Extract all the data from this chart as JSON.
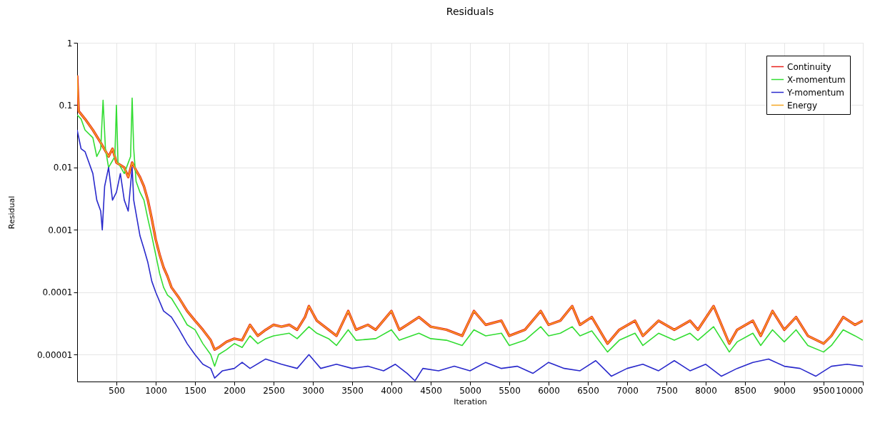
{
  "chart_data": {
    "type": "line",
    "title": "Residuals",
    "xlabel": "Iteration",
    "ylabel": "Residual",
    "log": "y",
    "grid": true,
    "legend": "top right",
    "line_style": "solid",
    "marker": "none",
    "xlim": [
      0,
      10000
    ],
    "xticks": [
      500,
      1000,
      1500,
      2000,
      2500,
      3000,
      3500,
      4000,
      4500,
      5000,
      5500,
      6000,
      6500,
      7000,
      7500,
      8000,
      8500,
      9000,
      9500,
      10000
    ],
    "ylim": [
      3.7e-06,
      1
    ],
    "yticks": [
      1,
      0.1,
      0.01,
      0.001,
      0.0001,
      {
        "value": 1e-05,
        "label": "0.00001"
      }
    ],
    "series": [
      {
        "name": "Continuity",
        "color": "#e8211b",
        "x": [
          0,
          20,
          100,
          200,
          300,
          400,
          450,
          500,
          600,
          650,
          700,
          750,
          800,
          850,
          900,
          950,
          1000,
          1050,
          1100,
          1150,
          1200,
          1300,
          1400,
          1500,
          1600,
          1700,
          1750,
          1800,
          1900,
          2000,
          2100,
          2200,
          2300,
          2400,
          2500,
          2600,
          2700,
          2800,
          2900,
          2950,
          3050,
          3200,
          3300,
          3450,
          3550,
          3700,
          3800,
          4000,
          4100,
          4200,
          4350,
          4500,
          4700,
          4900,
          5050,
          5200,
          5400,
          5500,
          5700,
          5900,
          6000,
          6150,
          6300,
          6400,
          6550,
          6750,
          6900,
          7100,
          7200,
          7400,
          7600,
          7800,
          7900,
          8100,
          8300,
          8400,
          8600,
          8700,
          8850,
          9000,
          9150,
          9300,
          9500,
          9600,
          9750,
          9900,
          10000
        ],
        "values": [
          0.3,
          0.08,
          0.06,
          0.04,
          0.025,
          0.015,
          0.02,
          0.012,
          0.01,
          0.007,
          0.012,
          0.009,
          0.007,
          0.005,
          0.003,
          0.0015,
          0.0007,
          0.0004,
          0.00025,
          0.00018,
          0.00012,
          8e-05,
          5e-05,
          3.5e-05,
          2.5e-05,
          1.7e-05,
          1.2e-05,
          1.3e-05,
          1.6e-05,
          1.8e-05,
          1.7e-05,
          3e-05,
          2e-05,
          2.5e-05,
          3e-05,
          2.8e-05,
          3e-05,
          2.5e-05,
          4e-05,
          6e-05,
          3.5e-05,
          2.5e-05,
          2e-05,
          5e-05,
          2.5e-05,
          3e-05,
          2.5e-05,
          5e-05,
          2.5e-05,
          3e-05,
          4e-05,
          2.8e-05,
          2.5e-05,
          2e-05,
          5e-05,
          3e-05,
          3.5e-05,
          2e-05,
          2.5e-05,
          5e-05,
          3e-05,
          3.5e-05,
          6e-05,
          3e-05,
          4e-05,
          1.5e-05,
          2.5e-05,
          3.5e-05,
          2e-05,
          3.5e-05,
          2.5e-05,
          3.5e-05,
          2.5e-05,
          6e-05,
          1.5e-05,
          2.5e-05,
          3.5e-05,
          2e-05,
          5e-05,
          2.5e-05,
          4e-05,
          2e-05,
          1.5e-05,
          2e-05,
          4e-05,
          3e-05,
          3.5e-05
        ]
      },
      {
        "name": "X-momentum",
        "color": "#33dd33",
        "x": [
          0,
          50,
          100,
          200,
          250,
          300,
          330,
          360,
          400,
          480,
          500,
          520,
          600,
          680,
          700,
          720,
          750,
          800,
          850,
          900,
          950,
          1000,
          1050,
          1100,
          1150,
          1200,
          1300,
          1400,
          1500,
          1600,
          1700,
          1750,
          1800,
          1900,
          2000,
          2100,
          2200,
          2300,
          2400,
          2500,
          2700,
          2800,
          2950,
          3050,
          3200,
          3300,
          3450,
          3550,
          3800,
          4000,
          4100,
          4350,
          4500,
          4700,
          4900,
          5050,
          5200,
          5400,
          5500,
          5700,
          5900,
          6000,
          6150,
          6300,
          6400,
          6550,
          6750,
          6900,
          7100,
          7200,
          7400,
          7600,
          7800,
          7900,
          8100,
          8300,
          8400,
          8600,
          8700,
          8850,
          9000,
          9150,
          9300,
          9500,
          9600,
          9750,
          9900,
          10000
        ],
        "values": [
          0.07,
          0.06,
          0.04,
          0.03,
          0.015,
          0.02,
          0.12,
          0.02,
          0.01,
          0.015,
          0.1,
          0.012,
          0.008,
          0.015,
          0.13,
          0.02,
          0.006,
          0.004,
          0.003,
          0.0015,
          0.0008,
          0.0004,
          0.0002,
          0.00012,
          9e-05,
          8e-05,
          5e-05,
          3e-05,
          2.5e-05,
          1.5e-05,
          1e-05,
          6.5e-06,
          1e-05,
          1.2e-05,
          1.5e-05,
          1.3e-05,
          2e-05,
          1.5e-05,
          1.8e-05,
          2e-05,
          2.2e-05,
          1.8e-05,
          2.8e-05,
          2.2e-05,
          1.8e-05,
          1.4e-05,
          2.5e-05,
          1.7e-05,
          1.8e-05,
          2.5e-05,
          1.7e-05,
          2.2e-05,
          1.8e-05,
          1.7e-05,
          1.4e-05,
          2.5e-05,
          2e-05,
          2.2e-05,
          1.4e-05,
          1.7e-05,
          2.8e-05,
          2e-05,
          2.2e-05,
          2.8e-05,
          2e-05,
          2.4e-05,
          1.1e-05,
          1.7e-05,
          2.2e-05,
          1.4e-05,
          2.2e-05,
          1.7e-05,
          2.2e-05,
          1.7e-05,
          2.8e-05,
          1.1e-05,
          1.6e-05,
          2.2e-05,
          1.4e-05,
          2.5e-05,
          1.6e-05,
          2.5e-05,
          1.4e-05,
          1.1e-05,
          1.4e-05,
          2.5e-05,
          2e-05,
          1.7e-05
        ]
      },
      {
        "name": "Y-momentum",
        "color": "#2a2acc",
        "x": [
          0,
          50,
          100,
          200,
          250,
          300,
          320,
          350,
          400,
          450,
          500,
          550,
          600,
          650,
          700,
          720,
          800,
          850,
          900,
          950,
          1000,
          1100,
          1200,
          1300,
          1400,
          1500,
          1600,
          1700,
          1750,
          1850,
          2000,
          2100,
          2200,
          2400,
          2600,
          2800,
          2950,
          3100,
          3300,
          3500,
          3700,
          3900,
          4050,
          4200,
          4300,
          4400,
          4600,
          4800,
          5000,
          5200,
          5400,
          5600,
          5800,
          6000,
          6200,
          6400,
          6600,
          6800,
          7000,
          7200,
          7400,
          7600,
          7800,
          8000,
          8200,
          8400,
          8600,
          8800,
          9000,
          9200,
          9400,
          9600,
          9800,
          10000
        ],
        "values": [
          0.04,
          0.02,
          0.018,
          0.008,
          0.003,
          0.002,
          0.001,
          0.005,
          0.01,
          0.003,
          0.004,
          0.008,
          0.003,
          0.002,
          0.01,
          0.003,
          0.0008,
          0.0005,
          0.0003,
          0.00015,
          0.0001,
          5e-05,
          4e-05,
          2.5e-05,
          1.5e-05,
          1e-05,
          7e-06,
          6e-06,
          4.2e-06,
          5.5e-06,
          6e-06,
          7.5e-06,
          6e-06,
          8.5e-06,
          7e-06,
          6e-06,
          1e-05,
          6e-06,
          7e-06,
          6e-06,
          6.5e-06,
          5.5e-06,
          7e-06,
          5e-06,
          3.8e-06,
          6e-06,
          5.5e-06,
          6.5e-06,
          5.5e-06,
          7.5e-06,
          6e-06,
          6.5e-06,
          5e-06,
          7.5e-06,
          6e-06,
          5.5e-06,
          8e-06,
          4.5e-06,
          6e-06,
          7e-06,
          5.5e-06,
          8e-06,
          5.5e-06,
          7e-06,
          4.5e-06,
          6e-06,
          7.5e-06,
          8.5e-06,
          6.5e-06,
          6e-06,
          4.5e-06,
          6.5e-06,
          7e-06,
          6.5e-06
        ]
      },
      {
        "name": "Energy",
        "color": "#f5a623",
        "x": [
          0,
          20,
          100,
          200,
          300,
          400,
          450,
          500,
          600,
          650,
          700,
          750,
          800,
          850,
          900,
          950,
          1000,
          1050,
          1100,
          1150,
          1200,
          1300,
          1400,
          1500,
          1600,
          1700,
          1750,
          1800,
          1900,
          2000,
          2100,
          2200,
          2300,
          2400,
          2500,
          2600,
          2700,
          2800,
          2900,
          2950,
          3050,
          3200,
          3300,
          3450,
          3550,
          3700,
          3800,
          4000,
          4100,
          4200,
          4350,
          4500,
          4700,
          4900,
          5050,
          5200,
          5400,
          5500,
          5700,
          5900,
          6000,
          6150,
          6300,
          6400,
          6550,
          6750,
          6900,
          7100,
          7200,
          7400,
          7600,
          7800,
          7900,
          8100,
          8300,
          8400,
          8600,
          8700,
          8850,
          9000,
          9150,
          9300,
          9500,
          9600,
          9750,
          9900,
          10000
        ],
        "values": [
          0.3,
          0.08,
          0.06,
          0.04,
          0.025,
          0.015,
          0.02,
          0.012,
          0.01,
          0.007,
          0.012,
          0.009,
          0.007,
          0.005,
          0.003,
          0.0015,
          0.0007,
          0.0004,
          0.00025,
          0.00018,
          0.00012,
          8e-05,
          5e-05,
          3.5e-05,
          2.5e-05,
          1.7e-05,
          1.2e-05,
          1.3e-05,
          1.6e-05,
          1.8e-05,
          1.7e-05,
          3e-05,
          2e-05,
          2.5e-05,
          3e-05,
          2.8e-05,
          3e-05,
          2.5e-05,
          4e-05,
          6e-05,
          3.5e-05,
          2.5e-05,
          2e-05,
          5e-05,
          2.5e-05,
          3e-05,
          2.5e-05,
          5e-05,
          2.5e-05,
          3e-05,
          4e-05,
          2.8e-05,
          2.5e-05,
          2e-05,
          5e-05,
          3e-05,
          3.5e-05,
          2e-05,
          2.5e-05,
          5e-05,
          3e-05,
          3.5e-05,
          6e-05,
          3e-05,
          4e-05,
          1.5e-05,
          2.5e-05,
          3.5e-05,
          2e-05,
          3.5e-05,
          2.5e-05,
          3.5e-05,
          2.5e-05,
          6e-05,
          1.5e-05,
          2.5e-05,
          3.5e-05,
          2e-05,
          5e-05,
          2.5e-05,
          4e-05,
          2e-05,
          1.5e-05,
          2e-05,
          4e-05,
          3e-05,
          3.5e-05
        ]
      }
    ]
  }
}
